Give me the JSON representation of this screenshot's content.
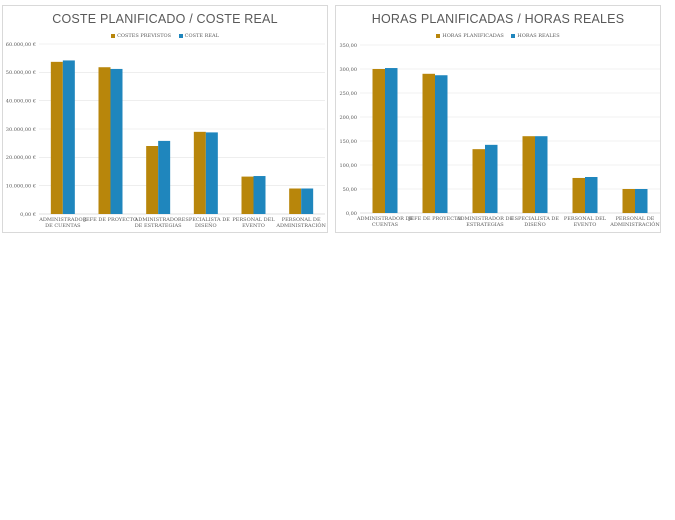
{
  "chart_data": [
    {
      "type": "bar",
      "title": "COSTE PLANIFICADO / COSTE REAL",
      "categories": [
        [
          "ADMINISTRADOR",
          "DE CUENTAS"
        ],
        [
          "JEFE DE PROYECTO"
        ],
        [
          "ADMINISTRADOR",
          "DE ESTRATEGIAS"
        ],
        [
          "ESPECIALISTA DE",
          "DISEÑO"
        ],
        [
          "PERSONAL DEL",
          "EVENTO"
        ],
        [
          "PERSONAL DE",
          "ADMINISTRACIÓN"
        ]
      ],
      "series": [
        {
          "name": "COSTES PREVISTOS",
          "color": "#B8860B",
          "values": [
            53700,
            51800,
            24000,
            29000,
            13200,
            9000
          ]
        },
        {
          "name": "COSTE REAL",
          "color": "#1F86BD",
          "values": [
            54200,
            51200,
            25800,
            28800,
            13400,
            9000
          ]
        }
      ],
      "ylim": [
        0,
        60000
      ],
      "yticks": [
        "0,00 €",
        "10.000,00 €",
        "20.000,00 €",
        "30.000,00 €",
        "40.000,00 €",
        "50.000,00 €",
        "60.000,00 €"
      ],
      "grid": true,
      "legend": "top-center"
    },
    {
      "type": "bar",
      "title": "HORAS PLANIFICADAS / HORAS REALES",
      "categories": [
        [
          "ADMINISTRADOR DE",
          "CUENTAS"
        ],
        [
          "JEFE DE PROYECTO"
        ],
        [
          "ADMINISTRADOR DE",
          "ESTRATEGIAS"
        ],
        [
          "ESPECIALISTA DE",
          "DISEÑO"
        ],
        [
          "PERSONAL DEL",
          "EVENTO"
        ],
        [
          "PERSONAL DE",
          "ADMINISTRACIÓN"
        ]
      ],
      "series": [
        {
          "name": "HORAS PLANIFICADAS",
          "color": "#B8860B",
          "values": [
            300,
            290,
            133,
            160,
            73,
            50
          ]
        },
        {
          "name": "HORAS REALES",
          "color": "#1F86BD",
          "values": [
            302,
            287,
            142,
            160,
            75,
            50
          ]
        }
      ],
      "ylim": [
        0,
        350
      ],
      "yticks": [
        "0,00",
        "50,00",
        "100,00",
        "150,00",
        "200,00",
        "250,00",
        "300,00",
        "350,00"
      ],
      "grid": true,
      "legend": "top-center"
    }
  ]
}
